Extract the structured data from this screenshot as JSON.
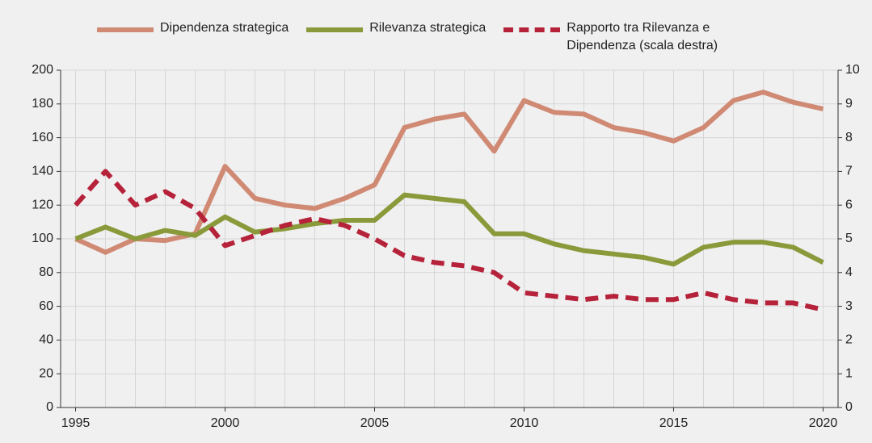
{
  "chart_data": {
    "type": "line",
    "x": [
      1995,
      1996,
      1997,
      1998,
      1999,
      2000,
      2001,
      2002,
      2003,
      2004,
      2005,
      2006,
      2007,
      2008,
      2009,
      2010,
      2011,
      2012,
      2013,
      2014,
      2015,
      2016,
      2017,
      2018,
      2019,
      2020
    ],
    "series": [
      {
        "name": "Dipendenza strategica",
        "color": "#d08a74",
        "dash": false,
        "values": [
          100,
          92,
          100,
          99,
          103,
          143,
          124,
          120,
          118,
          124,
          132,
          166,
          171,
          174,
          152,
          182,
          175,
          174,
          166,
          163,
          158,
          166,
          182,
          187,
          181,
          177
        ]
      },
      {
        "name": "Rilevanza strategica",
        "color": "#8a9a3a",
        "dash": false,
        "values": [
          100,
          107,
          100,
          105,
          102,
          113,
          104,
          106,
          109,
          111,
          111,
          126,
          124,
          122,
          103,
          103,
          97,
          93,
          91,
          89,
          85,
          95,
          98,
          98,
          95,
          86
        ]
      },
      {
        "name": "Rapporto tra Rilevanza e Dipendenza (scala destra)",
        "color": "#b5223a",
        "dash": true,
        "axis": "y2",
        "values": [
          6.0,
          7.0,
          6.0,
          6.4,
          5.9,
          4.8,
          5.1,
          5.4,
          5.6,
          5.4,
          5.0,
          4.5,
          4.3,
          4.2,
          4.0,
          3.4,
          3.3,
          3.2,
          3.3,
          3.2,
          3.2,
          3.4,
          3.2,
          3.1,
          3.1,
          2.9
        ]
      }
    ],
    "xlim": [
      1994.5,
      2020.5
    ],
    "xticks": [
      1995,
      2000,
      2005,
      2010,
      2015,
      2020
    ],
    "ylim": [
      0,
      200
    ],
    "yticks": [
      0,
      20,
      40,
      60,
      80,
      100,
      120,
      140,
      160,
      180,
      200
    ],
    "y2lim": [
      0,
      10
    ],
    "y2ticks": [
      0,
      1,
      2,
      3,
      4,
      5,
      6,
      7,
      8,
      9,
      10
    ],
    "grid": true
  }
}
